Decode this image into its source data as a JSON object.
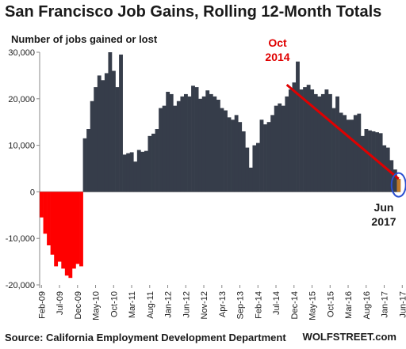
{
  "chart_data": {
    "type": "bar",
    "title": "San Francisco Job Gains, Rolling 12-Month Totals",
    "ylabel": "Number of jobs gained or lost",
    "source": "Source: California Employment Development Department",
    "brand": "WOLFSTREET.com",
    "ylim": [
      -20000,
      30000
    ],
    "yticks": [
      -20000,
      -10000,
      0,
      10000,
      20000,
      30000
    ],
    "ytick_labels": [
      "-20,000",
      "-10,000",
      "0",
      "10,000",
      "20,000",
      "30,000"
    ],
    "x_tick_labels": [
      "Feb-09",
      "Jul-09",
      "Dec-09",
      "May-10",
      "Oct-10",
      "Mar-11",
      "Aug-11",
      "Jan-12",
      "Jun-12",
      "Nov-12",
      "Apr-13",
      "Sep-13",
      "Feb-14",
      "Jul-14",
      "Dec-14",
      "May-15",
      "Oct-15",
      "Mar-16",
      "Aug-16",
      "Jan-17",
      "Jun-17"
    ],
    "colors": {
      "positive": "#363d4a",
      "negative": "#ff0000",
      "last": "#c0792a",
      "trend": "#e00000",
      "circle": "#2b4fd0"
    },
    "values": [
      -5500,
      -9000,
      -11500,
      -13500,
      -16000,
      -15000,
      -16500,
      -18000,
      -18500,
      -16500,
      -15500,
      -16000,
      11500,
      13500,
      19500,
      22500,
      25000,
      24000,
      25500,
      30000,
      26000,
      22500,
      29500,
      8000,
      8300,
      8500,
      6500,
      9000,
      8600,
      8800,
      12000,
      12500,
      13500,
      18000,
      18500,
      21500,
      21000,
      18500,
      19500,
      20500,
      21000,
      20500,
      22800,
      22500,
      20000,
      20500,
      21800,
      21000,
      20500,
      19800,
      18000,
      17500,
      16000,
      15500,
      16500,
      15000,
      13000,
      9500,
      5200,
      10000,
      10500,
      15500,
      14500,
      15000,
      16500,
      18500,
      19000,
      18500,
      20500,
      22000,
      23500,
      28000,
      22000,
      22500,
      23000,
      22000,
      21000,
      20500,
      21000,
      22000,
      21000,
      18000,
      20500,
      17000,
      16500,
      15500,
      15500,
      16500,
      16800,
      12000,
      13500,
      13200,
      13000,
      12800,
      12600,
      10000,
      9500,
      6800,
      4800,
      2800
    ]
  },
  "annotations": {
    "oct2014_line1": "Oct",
    "oct2014_line2": "2014",
    "jun2017_line1": "Jun",
    "jun2017_line2": "2017"
  }
}
